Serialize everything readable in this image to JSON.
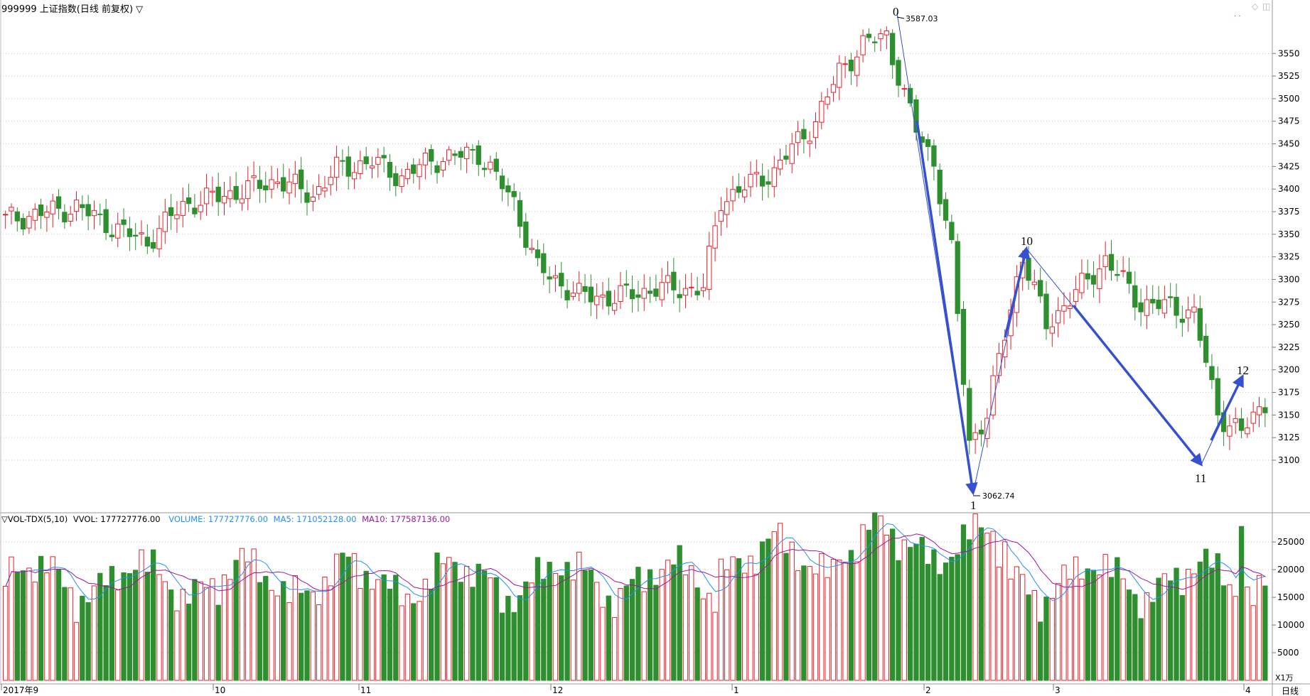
{
  "header": {
    "title": "999999 上证指数(日线 前复权) ▽",
    "window_controls": [
      "◇",
      "◫"
    ],
    "marker": "· ·"
  },
  "vol_header": {
    "name": "▽VOL-TDX(5,10)",
    "vvol": "VVOL: 177727776.00",
    "volume": "VOLUME: 177727776.00",
    "ma5": "MA5: 171052128.00",
    "ma10": "MA10: 177587136.00"
  },
  "price_axis": {
    "ticks": [
      3550,
      3525,
      3500,
      3475,
      3450,
      3425,
      3400,
      3375,
      3350,
      3325,
      3300,
      3275,
      3250,
      3225,
      3200,
      3175,
      3150,
      3125,
      3100
    ],
    "range": [
      3045,
      3595
    ]
  },
  "vol_axis": {
    "ticks": [
      "25000",
      "20000",
      "15000",
      "10000",
      "5000"
    ],
    "unit": "X1万",
    "range": [
      0,
      29500
    ]
  },
  "x_axis": {
    "labels": [
      "2017年9",
      "10",
      "11",
      "12",
      "1",
      "2",
      "3",
      "4"
    ],
    "period": "日线"
  },
  "wave_labels": [
    "0",
    "1",
    "10",
    "11",
    "12"
  ],
  "annotations": {
    "high": "3587.03",
    "low": "3062.74"
  },
  "colors": {
    "up": "#e8212a",
    "down": "#2e8f2e",
    "ma5": "#1e90ff",
    "ma10": "#a0159e",
    "wave": "#3550d0"
  },
  "chart_data": {
    "type": "candlestick",
    "x": [
      "2017-09",
      "2017-10",
      "2017-11",
      "2017-12",
      "2018-01",
      "2018-02",
      "2018-03",
      "2018-04"
    ],
    "high_value": 3587.03,
    "low_value": 3062.74,
    "volume_last": 177727776.0,
    "ma5_last": 171052128.0,
    "ma10_last": 177587136.0
  }
}
